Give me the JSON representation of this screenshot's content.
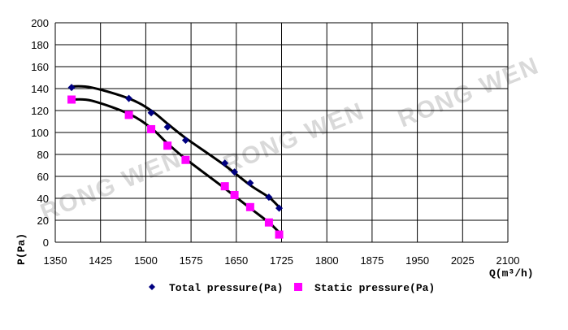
{
  "watermark": "RONG WEN",
  "chart_data": {
    "type": "line",
    "xlabel": "Q(m³/h)",
    "ylabel": "P(Pa)",
    "xlim": [
      1350,
      2100
    ],
    "ylim": [
      0,
      200
    ],
    "xticks": [
      1350,
      1425,
      1500,
      1575,
      1650,
      1725,
      1800,
      1875,
      1950,
      2025,
      2100
    ],
    "yticks": [
      0,
      20,
      40,
      60,
      80,
      100,
      120,
      140,
      160,
      180,
      200
    ],
    "grid": true,
    "legend_position": "bottom",
    "series": [
      {
        "name": "Total pressure(Pa)",
        "marker": "diamond",
        "color": "#000080",
        "points": [
          [
            1377,
            141
          ],
          [
            1472,
            131
          ],
          [
            1509,
            118
          ],
          [
            1536,
            105
          ],
          [
            1566,
            93
          ],
          [
            1631,
            72
          ],
          [
            1647,
            64
          ],
          [
            1673,
            54
          ],
          [
            1704,
            41
          ],
          [
            1721,
            31
          ]
        ],
        "curve": [
          [
            1377,
            142
          ],
          [
            1410,
            141
          ],
          [
            1472,
            131
          ],
          [
            1509,
            120
          ],
          [
            1536,
            108
          ],
          [
            1566,
            95
          ],
          [
            1631,
            70
          ],
          [
            1673,
            52
          ],
          [
            1704,
            41
          ],
          [
            1721,
            32
          ]
        ],
        "curve_color": "#000000"
      },
      {
        "name": "Static pressure(Pa)",
        "marker": "square",
        "color": "#ff00ff",
        "points": [
          [
            1377,
            130
          ],
          [
            1472,
            116
          ],
          [
            1509,
            103
          ],
          [
            1536,
            88
          ],
          [
            1566,
            75
          ],
          [
            1631,
            51
          ],
          [
            1647,
            43
          ],
          [
            1673,
            32
          ],
          [
            1704,
            18
          ],
          [
            1721,
            7
          ]
        ],
        "curve": [
          [
            1377,
            130
          ],
          [
            1410,
            129
          ],
          [
            1472,
            117
          ],
          [
            1509,
            104
          ],
          [
            1536,
            90
          ],
          [
            1566,
            76
          ],
          [
            1631,
            49
          ],
          [
            1673,
            31
          ],
          [
            1704,
            18
          ],
          [
            1721,
            9
          ]
        ],
        "curve_color": "#000000"
      }
    ]
  }
}
